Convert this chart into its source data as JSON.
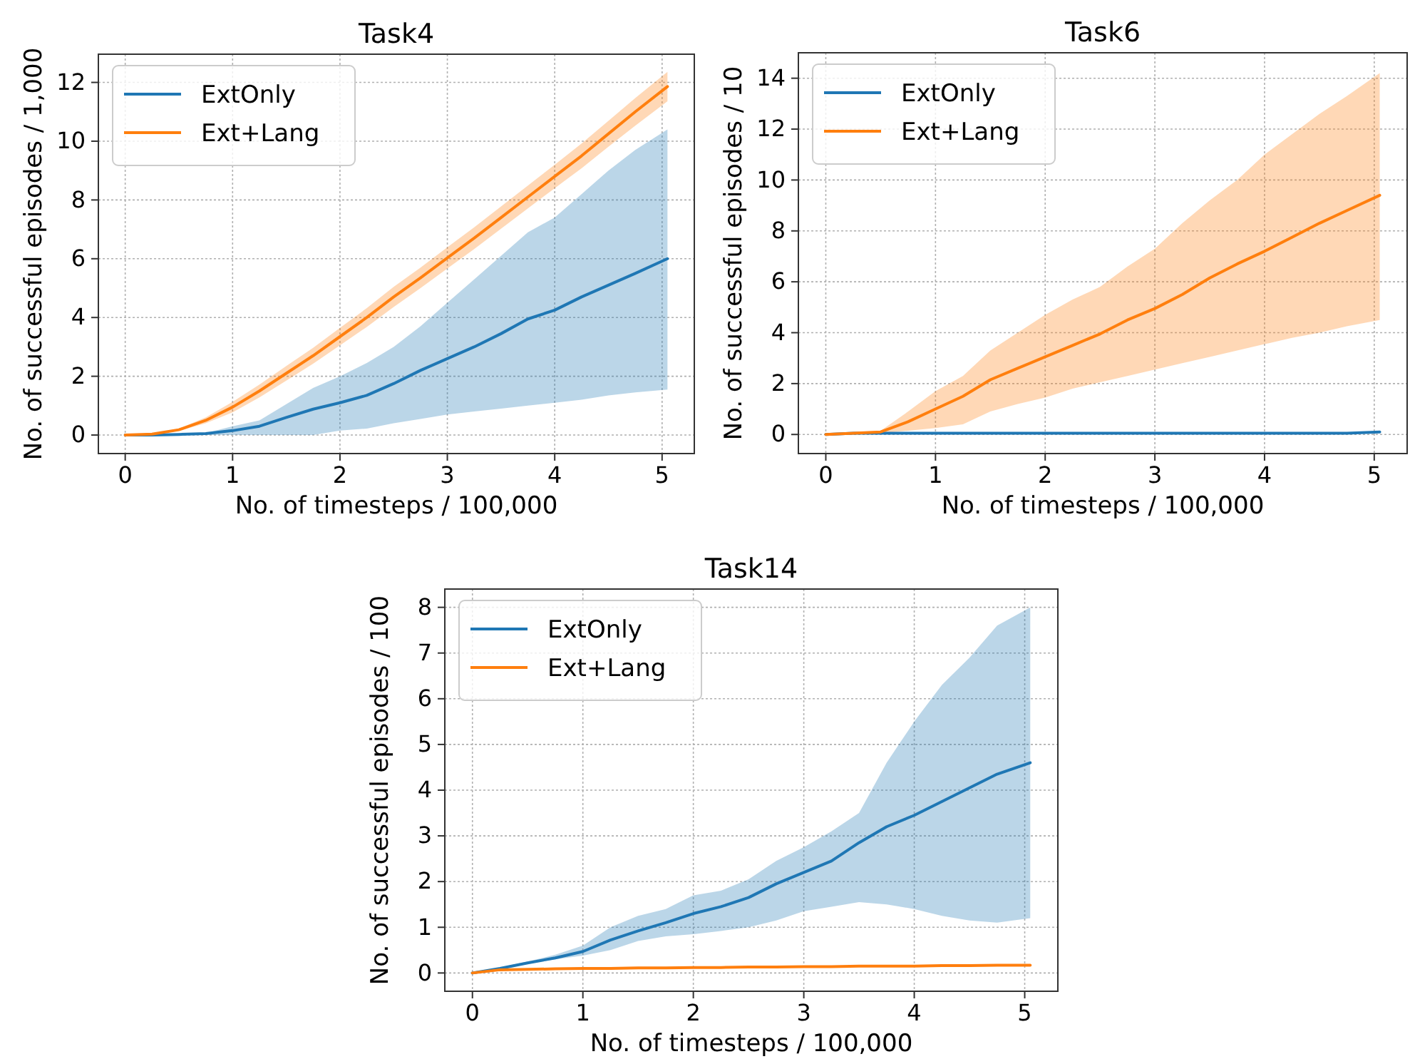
{
  "chart_data": [
    {
      "type": "line",
      "title": "Task4",
      "xlabel": "No. of timesteps / 100,000",
      "ylabel": "No. of successful episodes / 1,000",
      "xlim": [
        -0.25,
        5.3
      ],
      "xticks": [
        0,
        1,
        2,
        3,
        4,
        5
      ],
      "ylim": [
        -0.63,
        12.96
      ],
      "yticks": [
        0,
        2,
        4,
        6,
        8,
        10,
        12
      ],
      "grid": true,
      "legend": "top left",
      "line_style": "solid",
      "marker": "none",
      "x": [
        0,
        0.25,
        0.5,
        0.75,
        1,
        1.25,
        1.5,
        1.75,
        2,
        2.25,
        2.5,
        2.75,
        3,
        3.25,
        3.5,
        3.75,
        4,
        4.25,
        4.5,
        4.75,
        5.05
      ],
      "series": [
        {
          "name": "ExtOnly",
          "color": "#1f77b4",
          "values": [
            0,
            0,
            0.02,
            0.05,
            0.15,
            0.3,
            0.6,
            0.88,
            1.1,
            1.35,
            1.75,
            2.2,
            2.6,
            3.0,
            3.45,
            3.95,
            4.25,
            4.7,
            5.1,
            5.5,
            6.0
          ],
          "upper": [
            0,
            0,
            0.03,
            0.07,
            0.3,
            0.5,
            1.05,
            1.6,
            2.0,
            2.45,
            3.0,
            3.7,
            4.5,
            5.3,
            6.1,
            6.9,
            7.4,
            8.2,
            9.0,
            9.7,
            10.4
          ],
          "lower": [
            0,
            0,
            0,
            0,
            0,
            0,
            0,
            0,
            0.15,
            0.22,
            0.4,
            0.55,
            0.7,
            0.8,
            0.9,
            1.0,
            1.1,
            1.2,
            1.35,
            1.45,
            1.55
          ]
        },
        {
          "name": "Ext+Lang",
          "color": "#ff7f0e",
          "values": [
            0,
            0.03,
            0.18,
            0.5,
            0.95,
            1.5,
            2.1,
            2.7,
            3.35,
            4.0,
            4.7,
            5.35,
            6.03,
            6.7,
            7.4,
            8.1,
            8.8,
            9.5,
            10.25,
            11.0,
            11.86
          ],
          "upper": [
            0,
            0.04,
            0.22,
            0.6,
            1.13,
            1.72,
            2.35,
            2.97,
            3.65,
            4.32,
            5.04,
            5.7,
            6.39,
            7.07,
            7.78,
            8.49,
            9.2,
            9.92,
            10.69,
            11.47,
            12.36
          ],
          "lower": [
            0,
            0.02,
            0.14,
            0.4,
            0.77,
            1.28,
            1.85,
            2.43,
            3.05,
            3.68,
            4.36,
            5.0,
            5.67,
            6.33,
            7.02,
            7.71,
            8.4,
            9.08,
            9.81,
            10.53,
            11.36
          ]
        }
      ]
    },
    {
      "type": "line",
      "title": "Task6",
      "xlabel": "No. of timesteps / 100,000",
      "ylabel": "No. of successful episodes / 10",
      "xlim": [
        -0.25,
        5.3
      ],
      "xticks": [
        0,
        1,
        2,
        3,
        4,
        5
      ],
      "ylim": [
        -0.75,
        15
      ],
      "yticks": [
        0,
        2,
        4,
        6,
        8,
        10,
        12,
        14
      ],
      "grid": true,
      "legend": "top left",
      "line_style": "solid",
      "marker": "none",
      "x": [
        0,
        0.25,
        0.5,
        0.75,
        1,
        1.25,
        1.5,
        1.75,
        2,
        2.25,
        2.5,
        2.75,
        3,
        3.25,
        3.5,
        3.75,
        4,
        4.25,
        4.5,
        4.75,
        5.05
      ],
      "series": [
        {
          "name": "ExtOnly",
          "color": "#1f77b4",
          "values": [
            0,
            0.05,
            0.05,
            0.05,
            0.05,
            0.05,
            0.05,
            0.05,
            0.05,
            0.05,
            0.05,
            0.05,
            0.05,
            0.05,
            0.05,
            0.05,
            0.05,
            0.05,
            0.05,
            0.05,
            0.1
          ]
        },
        {
          "name": "Ext+Lang",
          "color": "#ff7f0e",
          "values": [
            0,
            0.05,
            0.1,
            0.5,
            1.0,
            1.5,
            2.15,
            2.6,
            3.05,
            3.5,
            3.95,
            4.5,
            4.95,
            5.5,
            6.15,
            6.7,
            7.2,
            7.75,
            8.3,
            8.8,
            9.4
          ],
          "upper": [
            0,
            0.1,
            0.15,
            0.9,
            1.7,
            2.3,
            3.3,
            4.0,
            4.7,
            5.3,
            5.8,
            6.6,
            7.3,
            8.3,
            9.2,
            10.0,
            11.0,
            11.8,
            12.6,
            13.3,
            14.2
          ],
          "lower": [
            0,
            0,
            0.05,
            0.15,
            0.25,
            0.4,
            0.9,
            1.2,
            1.45,
            1.8,
            2.05,
            2.3,
            2.55,
            2.8,
            3.05,
            3.3,
            3.55,
            3.8,
            4.0,
            4.25,
            4.5
          ]
        }
      ]
    },
    {
      "type": "line",
      "title": "Task14",
      "xlabel": "No. of timesteps / 100,000",
      "ylabel": "No. of successful episodes / 100",
      "xlim": [
        -0.25,
        5.3
      ],
      "xticks": [
        0,
        1,
        2,
        3,
        4,
        5
      ],
      "ylim": [
        -0.4,
        8.4
      ],
      "yticks": [
        0,
        1,
        2,
        3,
        4,
        5,
        6,
        7,
        8
      ],
      "grid": true,
      "legend": "top left",
      "line_style": "solid",
      "marker": "none",
      "x": [
        0,
        0.25,
        0.5,
        0.75,
        1,
        1.25,
        1.5,
        1.75,
        2,
        2.25,
        2.5,
        2.75,
        3,
        3.25,
        3.5,
        3.75,
        4,
        4.25,
        4.5,
        4.75,
        5.05
      ],
      "series": [
        {
          "name": "ExtOnly",
          "color": "#1f77b4",
          "values": [
            0,
            0.1,
            0.22,
            0.33,
            0.47,
            0.72,
            0.92,
            1.1,
            1.3,
            1.45,
            1.65,
            1.95,
            2.2,
            2.45,
            2.85,
            3.2,
            3.45,
            3.75,
            4.05,
            4.35,
            4.6
          ],
          "upper": [
            0,
            0.12,
            0.25,
            0.4,
            0.6,
            1.0,
            1.25,
            1.4,
            1.7,
            1.8,
            2.05,
            2.45,
            2.75,
            3.1,
            3.5,
            4.6,
            5.5,
            6.3,
            6.9,
            7.6,
            8.0
          ],
          "lower": [
            0,
            0.08,
            0.2,
            0.3,
            0.38,
            0.5,
            0.7,
            0.8,
            0.85,
            0.92,
            1.0,
            1.15,
            1.35,
            1.45,
            1.55,
            1.5,
            1.4,
            1.25,
            1.15,
            1.1,
            1.2
          ]
        },
        {
          "name": "Ext+Lang",
          "color": "#ff7f0e",
          "values": [
            0,
            0.07,
            0.08,
            0.09,
            0.1,
            0.1,
            0.11,
            0.11,
            0.12,
            0.12,
            0.13,
            0.13,
            0.14,
            0.14,
            0.15,
            0.15,
            0.15,
            0.16,
            0.16,
            0.17,
            0.17
          ]
        }
      ]
    }
  ]
}
